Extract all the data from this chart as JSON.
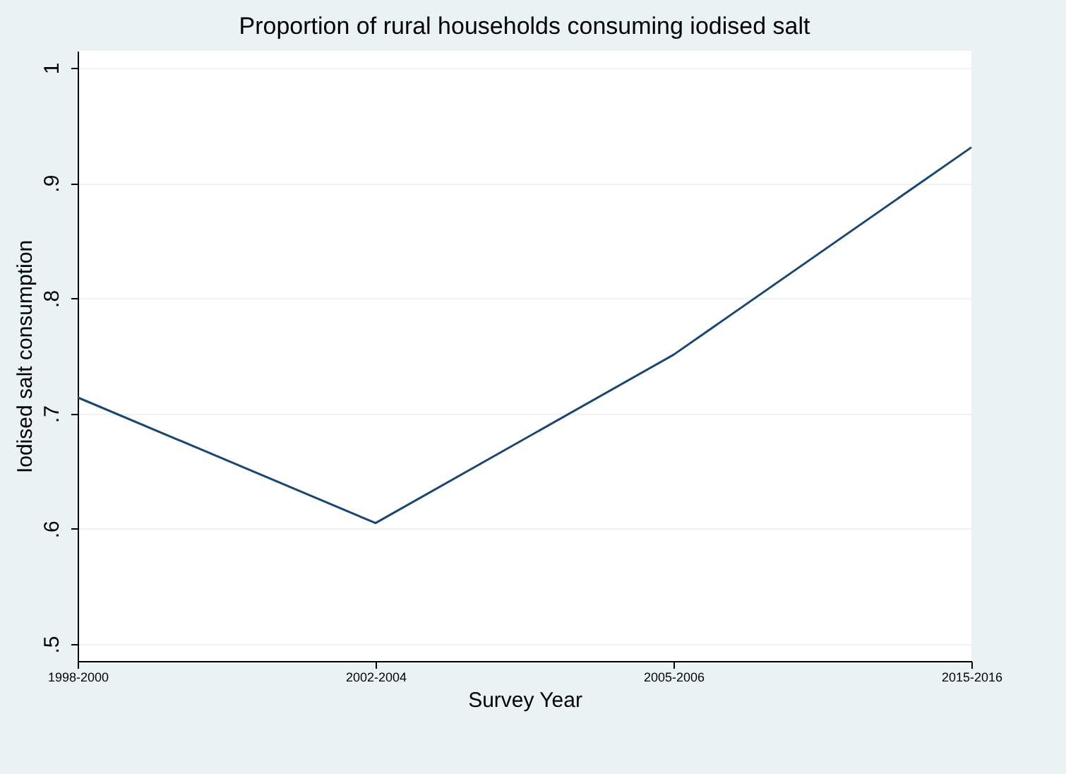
{
  "chart_data": {
    "type": "line",
    "title": "Proportion of rural households consuming iodised salt",
    "xlabel": "Survey Year",
    "ylabel": "Iodised salt consumption",
    "categories": [
      "1998-2000",
      "2002-2004",
      "2005-2006",
      "2015-2016"
    ],
    "series": [
      {
        "color": "#1a476f",
        "values": [
          0.714,
          0.605,
          0.751,
          0.931
        ]
      }
    ],
    "ylim": [
      0.5,
      1
    ],
    "yticks": [
      {
        "value": 0.5,
        "label": ".5"
      },
      {
        "value": 0.6,
        "label": ".6"
      },
      {
        "value": 0.7,
        "label": ".7"
      },
      {
        "value": 0.8,
        "label": ".8"
      },
      {
        "value": 0.9,
        "label": ".9"
      },
      {
        "value": 1,
        "label": "1"
      }
    ],
    "grid": "y",
    "legend": false,
    "marker": "none"
  }
}
